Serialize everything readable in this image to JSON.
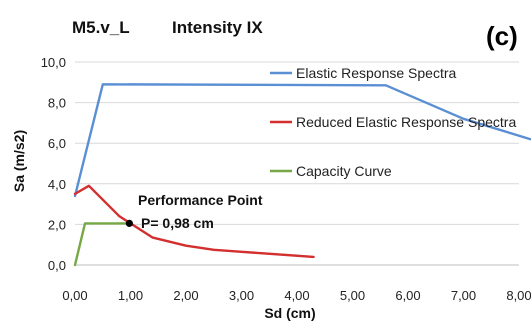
{
  "chart_data": {
    "type": "line",
    "title": "M5.v_L",
    "subtitle": "Intensity IX",
    "panel_label": "(c)",
    "xlabel": "Sd (cm)",
    "ylabel": "Sa (m/s2)",
    "xlim": [
      0,
      8.0
    ],
    "ylim": [
      0,
      10.0
    ],
    "x_ticks": [
      "0,00",
      "1,00",
      "2,00",
      "3,00",
      "4,00",
      "5,00",
      "6,00",
      "7,00",
      "8,00"
    ],
    "y_ticks": [
      "0,0",
      "2,0",
      "4,0",
      "6,0",
      "8,0",
      "10,0"
    ],
    "x_tick_values": [
      0,
      1,
      2,
      3,
      4,
      5,
      6,
      7,
      8
    ],
    "y_tick_values": [
      0,
      2,
      4,
      6,
      8,
      10
    ],
    "grid": {
      "horizontal": true,
      "vertical": false
    },
    "legend_position": "right",
    "series": [
      {
        "name": "Elastic Response Spectra",
        "color": "#5b8fd4",
        "points": [
          [
            0,
            3.4
          ],
          [
            0.5,
            8.9
          ],
          [
            5.6,
            8.85
          ],
          [
            7.0,
            7.2
          ],
          [
            8.2,
            6.2
          ]
        ]
      },
      {
        "name": "Reduced Elastic Response Spectra",
        "color": "#d32f2f",
        "points": [
          [
            0,
            3.5
          ],
          [
            0.25,
            3.9
          ],
          [
            0.8,
            2.4
          ],
          [
            1.0,
            2.05
          ],
          [
            1.4,
            1.35
          ],
          [
            2.0,
            0.95
          ],
          [
            2.5,
            0.75
          ],
          [
            3.0,
            0.65
          ],
          [
            4.3,
            0.4
          ]
        ]
      },
      {
        "name": "Capacity Curve",
        "color": "#77a846",
        "points": [
          [
            0,
            0
          ],
          [
            0.18,
            2.05
          ],
          [
            1.0,
            2.05
          ]
        ]
      }
    ],
    "annotation": {
      "label": "Performance Point",
      "value_text": "P= 0,98 cm",
      "point": [
        0.98,
        2.05
      ]
    }
  }
}
